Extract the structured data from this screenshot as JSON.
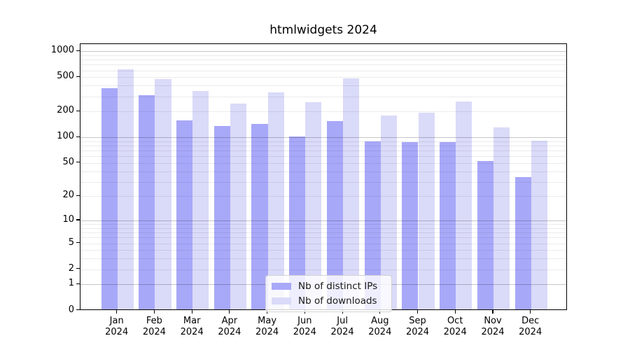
{
  "title": "htmlwidgets 2024",
  "colors": {
    "bar_ips": "#a8a8f9",
    "bar_downloads": "#dadaf9",
    "grid_major": "#c6c6c6",
    "grid_minor": "#ebebeb",
    "axis": "#000000",
    "legend_border": "#d2d2d2"
  },
  "legend": {
    "items": [
      "Nb of distinct IPs",
      "Nb of downloads"
    ]
  },
  "chart_data": {
    "type": "bar",
    "title": "htmlwidgets 2024",
    "categories": [
      "Jan 2024",
      "Feb 2024",
      "Mar 2024",
      "Apr 2024",
      "May 2024",
      "Jun 2024",
      "Jul 2024",
      "Aug 2024",
      "Sep 2024",
      "Oct 2024",
      "Nov 2024",
      "Dec 2024"
    ],
    "series": [
      {
        "name": "Nb of distinct IPs",
        "color": "#a8a8f9",
        "values": [
          365,
          300,
          153,
          131,
          140,
          100,
          151,
          87,
          85,
          85,
          51,
          33
        ]
      },
      {
        "name": "Nb of downloads",
        "color": "#dadaf9",
        "values": [
          600,
          465,
          340,
          241,
          325,
          248,
          468,
          176,
          187,
          255,
          128,
          88
        ]
      }
    ],
    "xlabel": "",
    "ylabel": "",
    "yscale": "log1p",
    "yticks": [
      0,
      1,
      2,
      5,
      10,
      20,
      50,
      100,
      200,
      500,
      1000
    ],
    "ylim": [
      0,
      1230
    ],
    "grid": "horizontal, major decades darker + faint log minors",
    "legend_position": "lower center"
  }
}
